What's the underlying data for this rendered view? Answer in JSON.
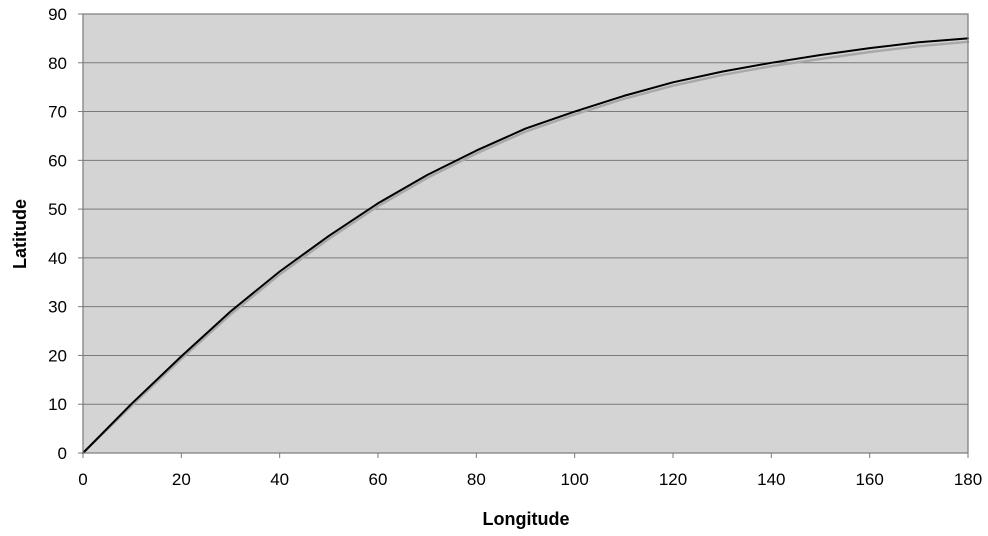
{
  "chart_data": {
    "type": "line",
    "xlabel": "Longitude",
    "ylabel": "Latitude",
    "xlim": [
      0,
      180
    ],
    "ylim": [
      0,
      90
    ],
    "x_ticks": [
      0,
      20,
      40,
      60,
      80,
      100,
      120,
      140,
      160,
      180
    ],
    "y_ticks": [
      0,
      10,
      20,
      30,
      40,
      50,
      60,
      70,
      80,
      90
    ],
    "grid": "horizontal",
    "legend": "none",
    "colors": {
      "plot_background": "#d4d4d4",
      "gridline": "#7a7a7a",
      "frame": "#7a7a7a",
      "primary_line": "#000000",
      "secondary_line": "#a8a8a8"
    },
    "series": [
      {
        "style": "primary",
        "x": [
          0,
          10,
          20,
          30,
          40,
          50,
          60,
          70,
          80,
          90,
          100,
          110,
          120,
          130,
          140,
          150,
          160,
          170,
          180
        ],
        "y": [
          0,
          10.2,
          19.8,
          29.0,
          37.2,
          44.5,
          51.2,
          57.0,
          62.0,
          66.5,
          70.0,
          73.2,
          76.0,
          78.2,
          80.0,
          81.6,
          83.0,
          84.2,
          85.0
        ]
      },
      {
        "style": "secondary",
        "x": [
          0,
          10,
          20,
          30,
          40,
          50,
          60,
          70,
          80,
          90,
          100,
          110,
          120,
          130,
          140,
          150,
          160,
          170,
          180
        ],
        "y": [
          0,
          9.8,
          19.3,
          28.4,
          36.6,
          43.9,
          50.6,
          56.4,
          61.4,
          65.9,
          69.4,
          72.6,
          75.3,
          77.5,
          79.3,
          80.8,
          82.2,
          83.4,
          84.3
        ]
      }
    ]
  }
}
